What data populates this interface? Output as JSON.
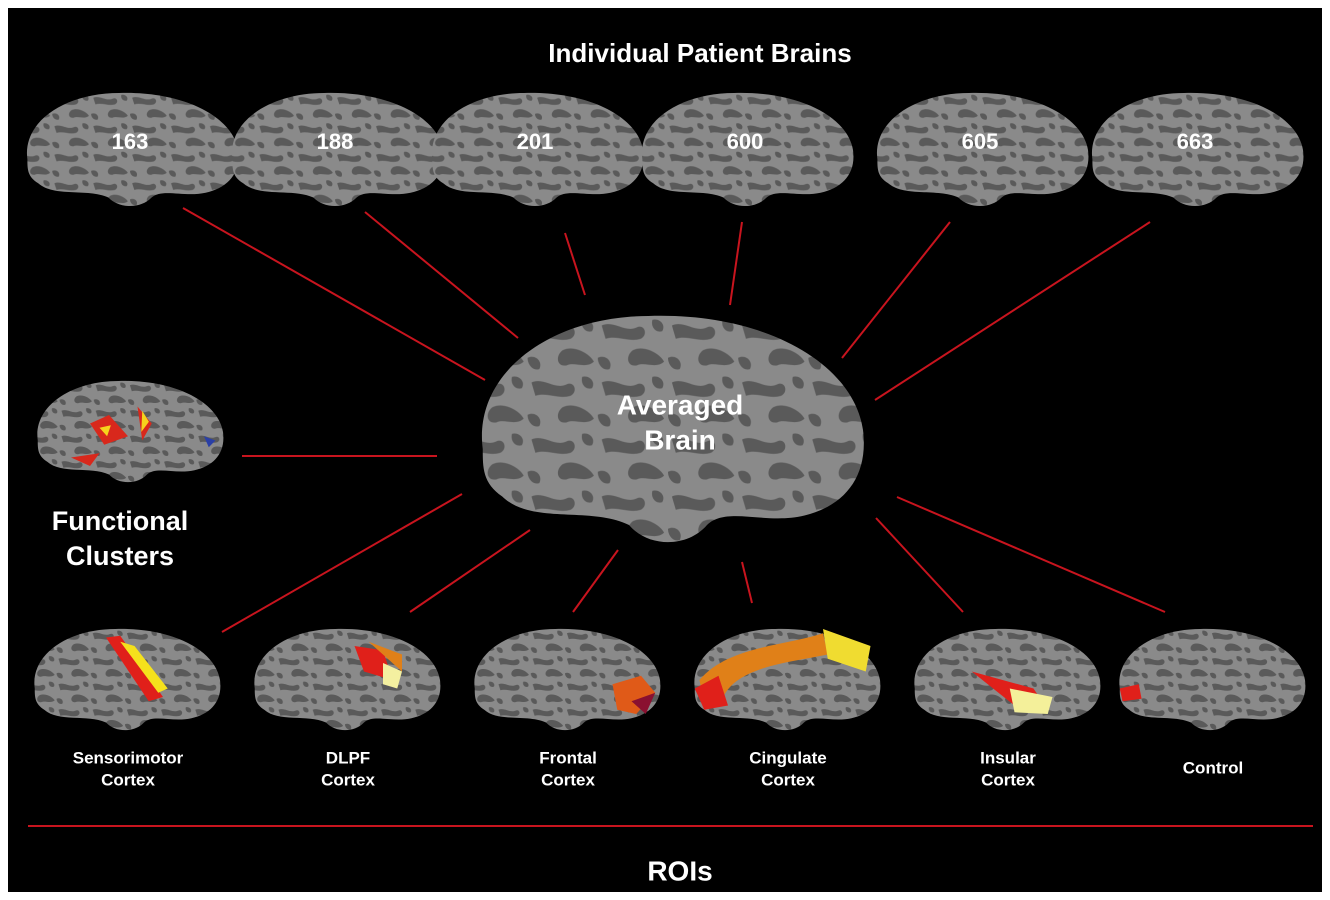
{
  "header": {
    "title": "Individual Patient Brains"
  },
  "patients": [
    {
      "label": "163"
    },
    {
      "label": "188"
    },
    {
      "label": "201"
    },
    {
      "label": "600"
    },
    {
      "label": "605"
    },
    {
      "label": "663"
    }
  ],
  "center": {
    "label_lines": [
      "Averaged",
      "Brain"
    ]
  },
  "clusters": {
    "label_lines": [
      "Functional",
      "Clusters"
    ]
  },
  "rois": [
    {
      "label_lines": [
        "Sensorimotor",
        "Cortex"
      ]
    },
    {
      "label_lines": [
        "DLPF",
        "Cortex"
      ]
    },
    {
      "label_lines": [
        "Frontal",
        "Cortex"
      ]
    },
    {
      "label_lines": [
        "Cingulate",
        "Cortex"
      ]
    },
    {
      "label_lines": [
        "Insular",
        "Cortex"
      ]
    },
    {
      "label_lines": [
        "Control"
      ]
    }
  ],
  "footer": {
    "title": "ROIs"
  }
}
